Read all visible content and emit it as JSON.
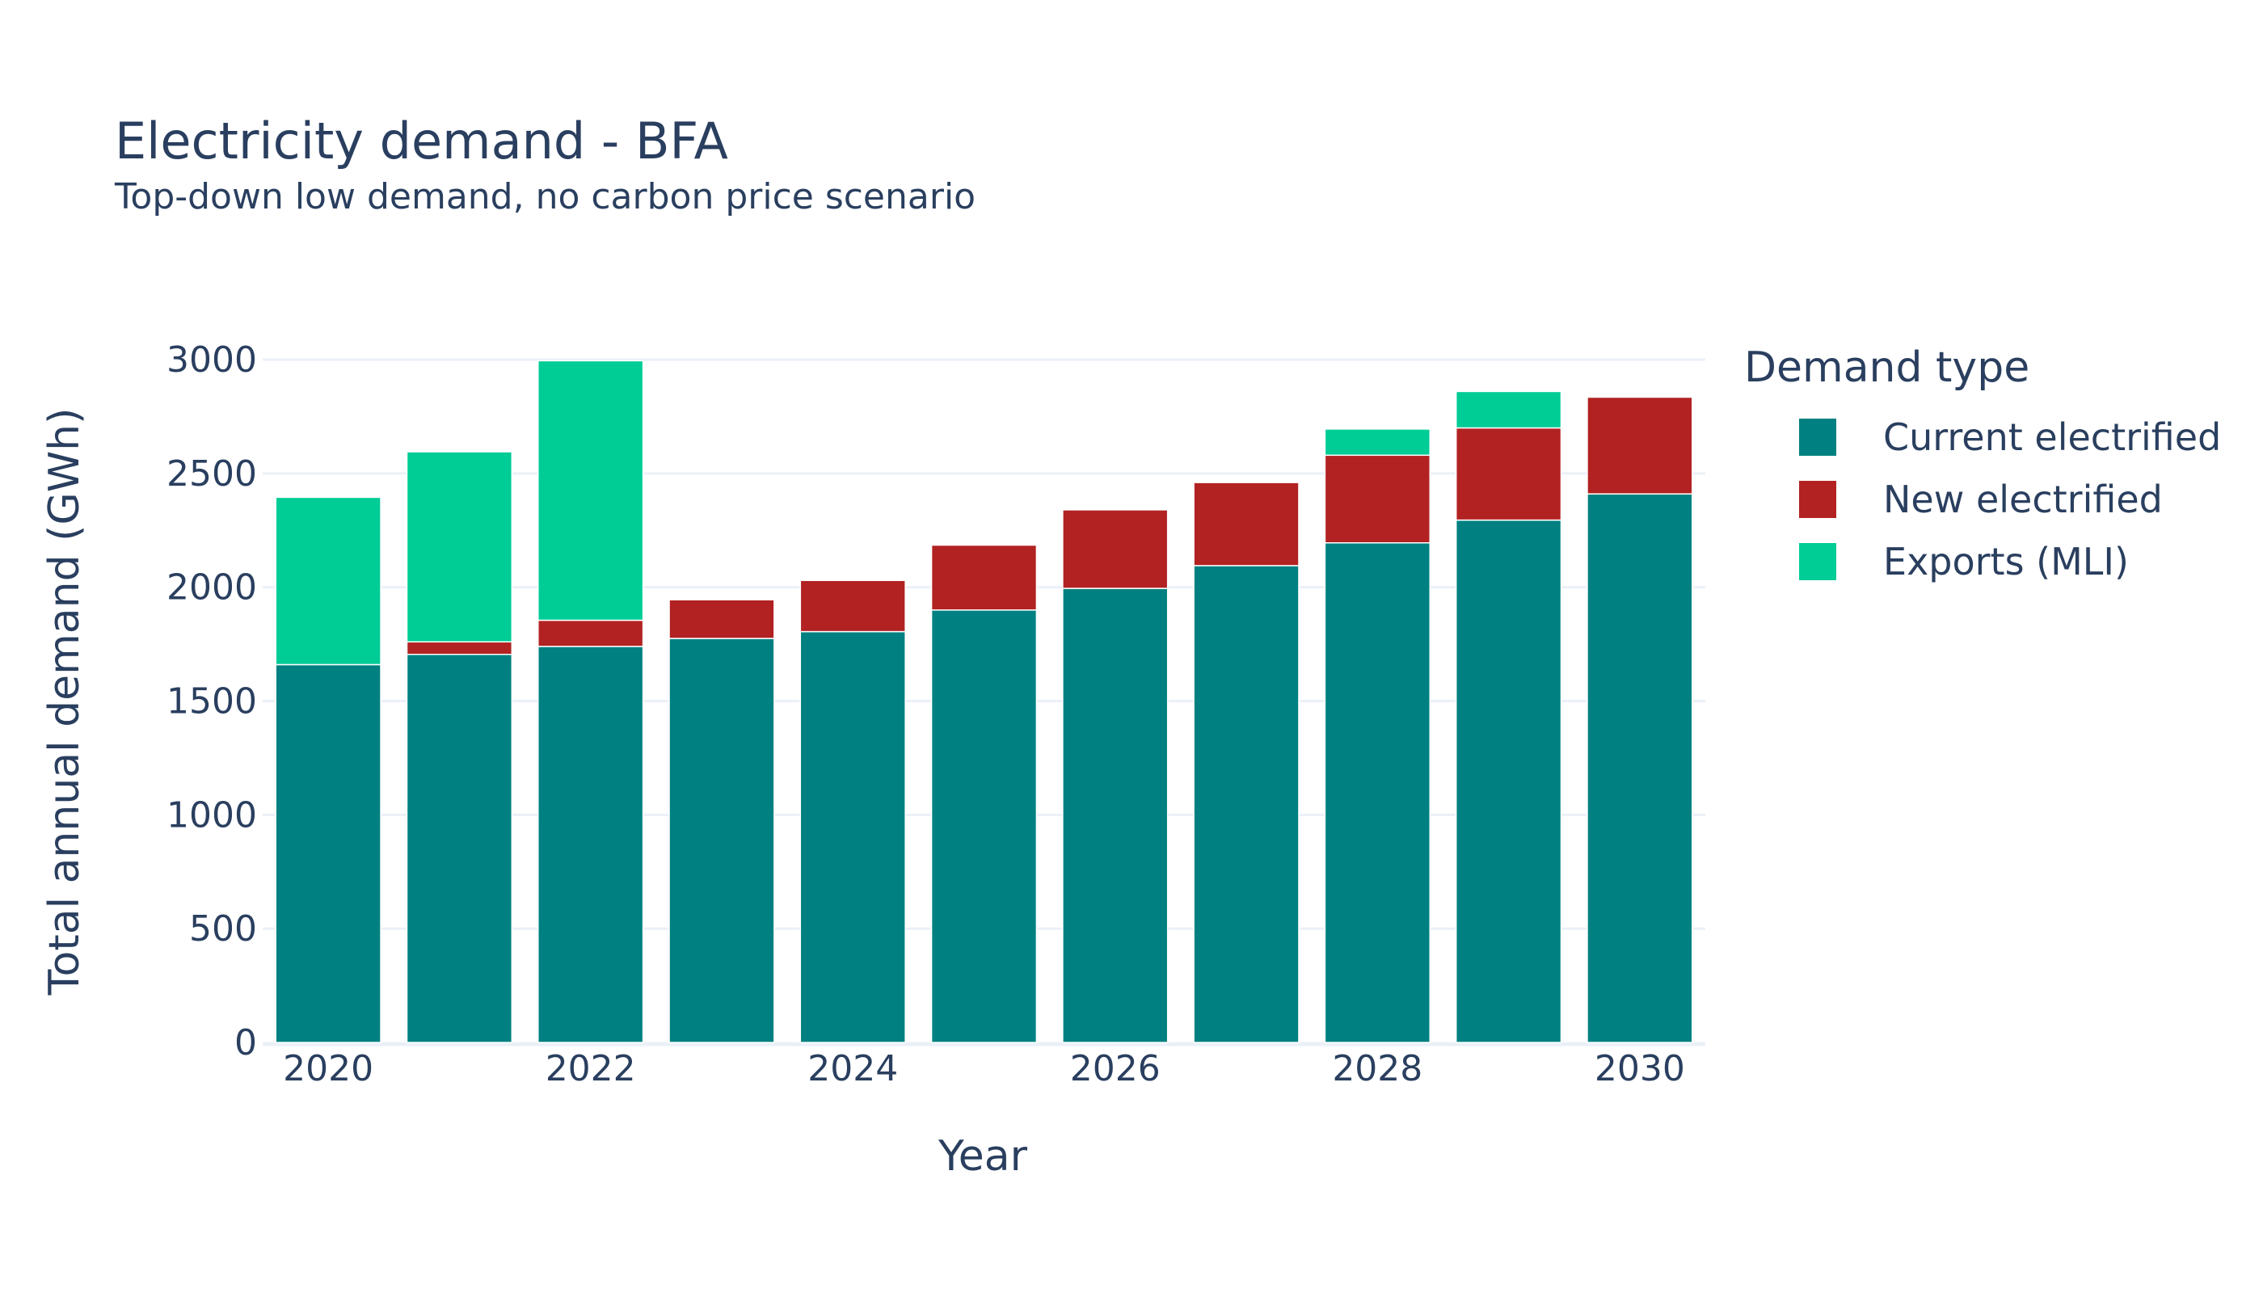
{
  "chart_data": {
    "type": "bar",
    "stacked": true,
    "title": "Electricity demand - BFA",
    "subtitle": "Top-down low demand, no carbon price scenario",
    "xlabel": "Year",
    "ylabel": "Total annual demand (GWh)",
    "ylim": [
      0,
      3000
    ],
    "y_ticks": [
      0,
      500,
      1000,
      1500,
      2000,
      2500,
      3000
    ],
    "x_tick_labels": [
      "2020",
      "2022",
      "2024",
      "2026",
      "2028",
      "2030"
    ],
    "grid": true,
    "legend_placement": "right",
    "legend_title": "Demand type",
    "categories": [
      2020,
      2021,
      2022,
      2023,
      2024,
      2025,
      2026,
      2027,
      2028,
      2029,
      2030
    ],
    "series": [
      {
        "name": "Current electrified",
        "color": "#008080",
        "values": [
          1660,
          1705,
          1740,
          1775,
          1805,
          1900,
          1995,
          2095,
          2195,
          2295,
          2410
        ]
      },
      {
        "name": "New electrified",
        "color": "#b22222",
        "values": [
          0,
          55,
          115,
          170,
          225,
          285,
          345,
          365,
          385,
          405,
          425
        ]
      },
      {
        "name": "Exports (MLI)",
        "color": "#00cc96",
        "values": [
          735,
          835,
          1140,
          0,
          0,
          0,
          0,
          0,
          115,
          160,
          0
        ]
      }
    ]
  }
}
